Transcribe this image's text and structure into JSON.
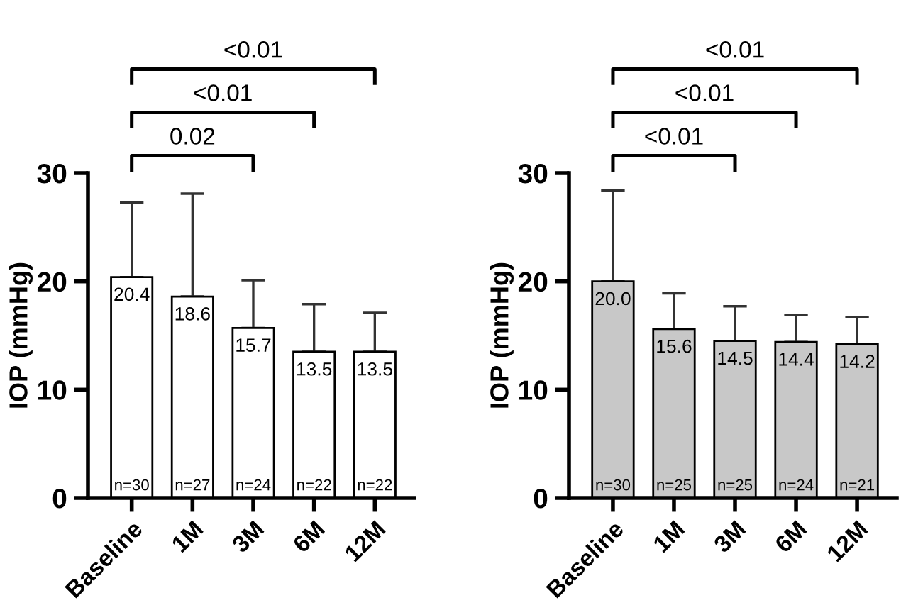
{
  "chart_data": [
    {
      "type": "bar",
      "categories": [
        "Baseline",
        "1M",
        "3M",
        "6M",
        "12M"
      ],
      "ylabel": "IOP (mmHg)",
      "ylim": [
        0,
        30
      ],
      "yticks": [
        0,
        10,
        20,
        30
      ],
      "grid": false,
      "legend": false,
      "series": [
        {
          "color": "#ffffff",
          "values": [
            20.4,
            18.6,
            15.7,
            13.5,
            13.5
          ],
          "value_labels": [
            "20.4",
            "18.6",
            "15.7",
            "13.5",
            "13.5"
          ],
          "errors": [
            [
              20.4,
              27.3
            ],
            [
              18.6,
              28.1
            ],
            [
              15.7,
              20.1
            ],
            [
              13.5,
              17.9
            ],
            [
              13.5,
              17.1
            ]
          ]
        }
      ],
      "annotations": [
        "0.02",
        "<0.01",
        "<0.01",
        {
          "text": "n=30",
          "x": "Baseline",
          "y": 0
        },
        {
          "text": "n=27",
          "x": "1M",
          "y": 0
        },
        {
          "text": "n=24",
          "x": "3M",
          "y": 0
        },
        {
          "text": "n=22",
          "x": "6M",
          "y": 0
        },
        {
          "text": "n=22",
          "x": "12M",
          "y": 0
        }
      ]
    },
    {
      "type": "bar",
      "categories": [
        "Baseline",
        "1M",
        "3M",
        "6M",
        "12M"
      ],
      "ylabel": "IOP (mmHg)",
      "ylim": [
        0,
        30
      ],
      "yticks": [
        0,
        10,
        20,
        30
      ],
      "grid": false,
      "legend": false,
      "series": [
        {
          "color": "#c8c8c8",
          "values": [
            20.0,
            15.6,
            14.5,
            14.4,
            14.2
          ],
          "value_labels": [
            "20.0",
            "15.6",
            "14.5",
            "14.4",
            "14.2"
          ],
          "errors": [
            [
              20.0,
              28.4
            ],
            [
              15.6,
              18.9
            ],
            [
              14.5,
              17.7
            ],
            [
              14.4,
              16.9
            ],
            [
              14.2,
              16.7
            ]
          ]
        }
      ],
      "annotations": [
        "<0.01",
        "<0.01",
        "<0.01",
        {
          "text": "n=30",
          "x": "Baseline",
          "y": 0
        },
        {
          "text": "n=25",
          "x": "1M",
          "y": 0
        },
        {
          "text": "n=25",
          "x": "3M",
          "y": 0
        },
        {
          "text": "n=24",
          "x": "6M",
          "y": 0
        },
        {
          "text": "n=21",
          "x": "12M",
          "y": 0
        }
      ]
    }
  ]
}
